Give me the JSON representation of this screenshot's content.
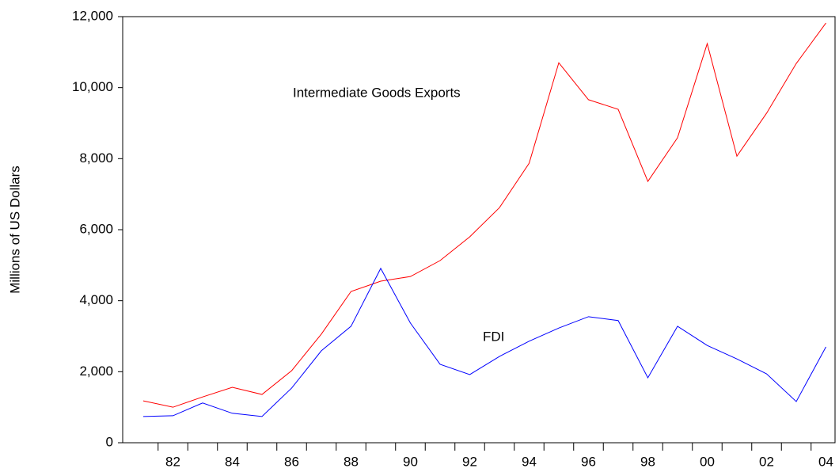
{
  "chart_data": {
    "type": "line",
    "y_label": "Millions of US Dollars",
    "categories": [
      null,
      "82",
      null,
      "84",
      null,
      "86",
      null,
      "88",
      null,
      "90",
      null,
      "92",
      null,
      "94",
      null,
      "96",
      null,
      "98",
      null,
      "00",
      null,
      "02",
      null,
      "04"
    ],
    "series": [
      {
        "name": "Intermediate Goods Exports",
        "color": "#ff0000",
        "values": [
          1180,
          1000,
          1290,
          1560,
          1360,
          2030,
          3060,
          4260,
          4550,
          4680,
          5130,
          5800,
          6620,
          7870,
          10700,
          9660,
          9390,
          7360,
          8590,
          11240,
          8070,
          9280,
          10680,
          11820
        ]
      },
      {
        "name": "FDI",
        "color": "#0000ff",
        "values": [
          740,
          760,
          1120,
          830,
          740,
          1540,
          2590,
          3280,
          4910,
          3370,
          2210,
          1920,
          2430,
          2860,
          3230,
          3550,
          3440,
          1830,
          3280,
          2740,
          2360,
          1940,
          1160,
          2700
        ]
      }
    ],
    "ylim": [
      0,
      12000
    ],
    "yticks": [
      0,
      {
        "value": 2000,
        "label": "2,000"
      },
      {
        "value": 4000,
        "label": "4,000"
      },
      {
        "value": 6000,
        "label": "6,000"
      },
      {
        "value": 8000,
        "label": "8,000"
      },
      {
        "value": 10000,
        "label": "10,000"
      },
      {
        "value": 12000,
        "label": "12,000"
      }
    ],
    "grid": false
  }
}
